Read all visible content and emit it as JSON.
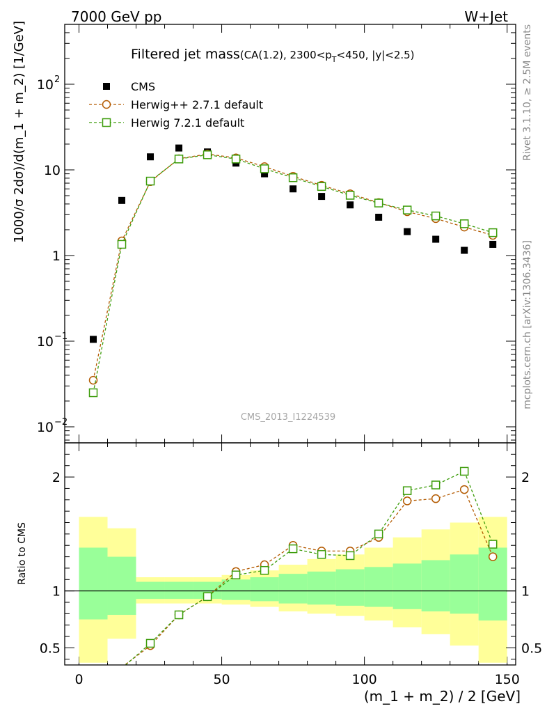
{
  "header": {
    "left": "7000 GeV pp",
    "right": "W+Jet"
  },
  "side_labels": {
    "rivet": "Rivet 3.1.10, ≥ 2.5M events",
    "mcplots": "mcplots.cern.ch [arXiv:1306.3436]"
  },
  "chart_data": [
    {
      "type": "scatter",
      "title_main": "Filtered jet mass",
      "title_cut_a": "(CA(1.2), 2300<p",
      "title_cut_sub": "T",
      "title_cut_b": "<450, |y|<2.5)",
      "watermark": "CMS_2013_I1224539",
      "ylabel": "1000/σ 2dσ)/d(m_1 + m_2) [1/GeV]",
      "yscale": "log",
      "xlim": [
        -5,
        153
      ],
      "ylim": [
        0.0065,
        500
      ],
      "yticks": [
        {
          "v": 0.01,
          "base": "10",
          "exp": "−2"
        },
        {
          "v": 0.1,
          "base": "10",
          "exp": "−1"
        },
        {
          "v": 1,
          "base": "1",
          "exp": ""
        },
        {
          "v": 10,
          "base": "10",
          "exp": ""
        },
        {
          "v": 100,
          "base": "10",
          "exp": "2"
        }
      ],
      "x": [
        5,
        15,
        25,
        35,
        45,
        55,
        65,
        75,
        85,
        95,
        105,
        115,
        125,
        135,
        145
      ],
      "series": [
        {
          "name": "CMS",
          "color": "#000000",
          "marker": "filled-square",
          "values": [
            0.105,
            4.4,
            14.2,
            18.0,
            16.2,
            12.0,
            9.0,
            6.0,
            4.9,
            3.9,
            2.8,
            1.9,
            1.55,
            1.15,
            1.35
          ]
        },
        {
          "name": "Herwig++ 2.7.1 default",
          "color": "#b35a00",
          "marker": "open-circle",
          "values": [
            0.035,
            1.48,
            7.3,
            13.5,
            15.3,
            13.8,
            10.9,
            8.4,
            6.6,
            5.25,
            4.15,
            3.25,
            2.7,
            2.15,
            1.72
          ]
        },
        {
          "name": "Herwig 7.2.1 default",
          "color": "#3c9c0a",
          "marker": "open-square",
          "values": [
            0.025,
            1.35,
            7.4,
            13.4,
            15.0,
            13.4,
            10.3,
            8.1,
            6.4,
            5.05,
            4.1,
            3.4,
            2.9,
            2.35,
            1.85
          ]
        }
      ]
    },
    {
      "type": "scatter",
      "xlabel": "(m_1 + m_2) / 2 [GeV]",
      "ylabel": "Ratio to CMS",
      "xlim": [
        -5,
        153
      ],
      "ylim": [
        0.35,
        2.3
      ],
      "yticks": [
        0.5,
        1,
        2
      ],
      "xticks": [
        0,
        50,
        100,
        150
      ],
      "bands": {
        "edges": [
          0,
          10,
          20,
          30,
          40,
          50,
          60,
          70,
          80,
          90,
          100,
          110,
          120,
          130,
          140,
          150
        ],
        "inner_color": "#99ff99",
        "outer_color": "#ffff99",
        "inner_lo": [
          0.75,
          0.79,
          0.93,
          0.93,
          0.93,
          0.92,
          0.91,
          0.89,
          0.88,
          0.87,
          0.86,
          0.84,
          0.82,
          0.8,
          0.74
        ],
        "inner_hi": [
          1.38,
          1.3,
          1.08,
          1.08,
          1.08,
          1.1,
          1.12,
          1.15,
          1.17,
          1.19,
          1.21,
          1.24,
          1.27,
          1.32,
          1.38
        ],
        "outer_lo": [
          0.37,
          0.58,
          0.89,
          0.89,
          0.89,
          0.88,
          0.86,
          0.82,
          0.8,
          0.78,
          0.74,
          0.68,
          0.62,
          0.52,
          0.37
        ],
        "outer_hi": [
          1.65,
          1.55,
          1.12,
          1.12,
          1.12,
          1.14,
          1.18,
          1.23,
          1.28,
          1.32,
          1.38,
          1.47,
          1.54,
          1.6,
          1.65
        ]
      },
      "series": [
        {
          "name": "Herwig++ 2.7.1 default",
          "color": "#b35a00",
          "marker": "open-circle",
          "x": [
            15,
            25,
            35,
            45,
            55,
            65,
            75,
            85,
            95,
            105,
            115,
            125,
            135,
            145
          ],
          "values": [
            0.33,
            0.52,
            0.79,
            0.95,
            1.17,
            1.23,
            1.4,
            1.35,
            1.35,
            1.47,
            1.79,
            1.81,
            1.89,
            1.3
          ]
        },
        {
          "name": "Herwig 7.2.1 default",
          "color": "#3c9c0a",
          "marker": "open-square",
          "x": [
            15,
            25,
            35,
            45,
            55,
            65,
            75,
            85,
            95,
            105,
            115,
            125,
            135,
            145
          ],
          "values": [
            0.32,
            0.54,
            0.79,
            0.95,
            1.14,
            1.18,
            1.37,
            1.32,
            1.31,
            1.5,
            1.88,
            1.93,
            2.05,
            1.41
          ]
        }
      ]
    }
  ]
}
